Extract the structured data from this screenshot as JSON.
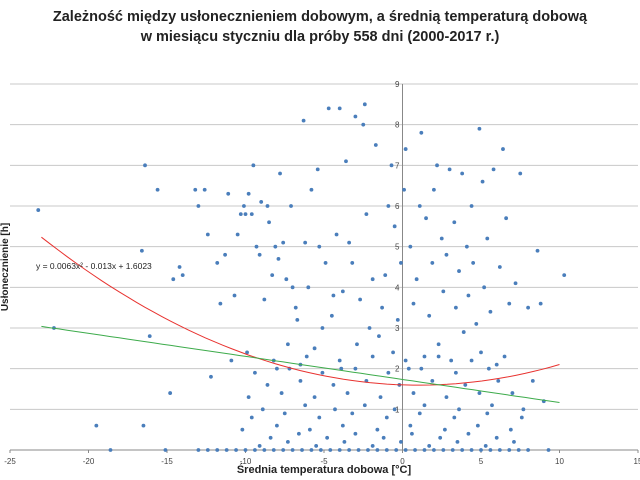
{
  "chart_data": {
    "type": "scatter",
    "title": "Zależność między usłonecznieniem dobowym, a średnią temperaturą dobową",
    "subtitle": "w miesiącu styczniu dla próby 558 dni (2000-2017 r.)",
    "xlabel": "Średnia temperatura dobowa [°C]",
    "ylabel": "Usłonecznienie [h]",
    "xlim": [
      -25,
      15
    ],
    "ylim": [
      0,
      9
    ],
    "x_ticks": [
      "-25",
      "-20",
      "-15",
      "-10",
      "-5",
      "0",
      "5",
      "10",
      "15"
    ],
    "y_ticks": [
      "1",
      "2",
      "3",
      "4",
      "5",
      "6",
      "7",
      "8",
      "9"
    ],
    "grid": "horizontal",
    "legend": "none",
    "trendline_equation": "y = 0.0063x² - 0.013x + 1.6023",
    "trendlines": [
      {
        "kind": "polynomial",
        "coefficients": [
          0.0063,
          -0.013,
          1.6023
        ],
        "x_range": [
          -23,
          10
        ],
        "color": "#e8322f"
      },
      {
        "kind": "linear",
        "slope": -0.0567,
        "intercept": 1.735,
        "x_range": [
          -23,
          10
        ],
        "color": "#3dab4b"
      }
    ],
    "point_color": "#4a7ebb",
    "points": [
      [
        -23.2,
        5.9
      ],
      [
        -22.2,
        3.0
      ],
      [
        -19.5,
        0.6
      ],
      [
        -18.6,
        0.0
      ],
      [
        -16.6,
        4.9
      ],
      [
        -16.4,
        7.0
      ],
      [
        -16.1,
        2.8
      ],
      [
        -16.5,
        0.6
      ],
      [
        -15.6,
        6.4
      ],
      [
        -15.1,
        0.0
      ],
      [
        -14.8,
        1.4
      ],
      [
        -14.6,
        4.2
      ],
      [
        -14.2,
        4.5
      ],
      [
        -14.0,
        4.3
      ],
      [
        -13.2,
        6.4
      ],
      [
        -13.0,
        6.0
      ],
      [
        -12.6,
        6.4
      ],
      [
        -12.4,
        5.3
      ],
      [
        -12.2,
        1.8
      ],
      [
        -11.8,
        4.6
      ],
      [
        -11.6,
        3.6
      ],
      [
        -11.3,
        4.8
      ],
      [
        -11.1,
        6.3
      ],
      [
        -10.9,
        2.2
      ],
      [
        -10.7,
        3.8
      ],
      [
        -10.5,
        5.3
      ],
      [
        -10.3,
        5.8
      ],
      [
        -10.1,
        6.0
      ],
      [
        -10.0,
        5.8
      ],
      [
        -9.9,
        2.4
      ],
      [
        -9.8,
        6.3
      ],
      [
        -9.6,
        5.8
      ],
      [
        -9.5,
        7.0
      ],
      [
        -9.3,
        5.0
      ],
      [
        -9.1,
        4.8
      ],
      [
        -9.0,
        6.1
      ],
      [
        -8.8,
        3.7
      ],
      [
        -8.6,
        6.0
      ],
      [
        -8.5,
        5.6
      ],
      [
        -8.3,
        4.3
      ],
      [
        -8.1,
        5.0
      ],
      [
        -8.0,
        2.0
      ],
      [
        -7.9,
        4.7
      ],
      [
        -7.8,
        6.8
      ],
      [
        -7.6,
        5.1
      ],
      [
        -7.4,
        4.2
      ],
      [
        -7.3,
        2.6
      ],
      [
        -7.1,
        6.0
      ],
      [
        -7.0,
        4.0
      ],
      [
        -6.8,
        3.5
      ],
      [
        -6.7,
        3.2
      ],
      [
        -6.5,
        2.1
      ],
      [
        -6.3,
        8.1
      ],
      [
        -6.2,
        5.1
      ],
      [
        -6.0,
        4.0
      ],
      [
        -5.8,
        6.4
      ],
      [
        -5.6,
        2.5
      ],
      [
        -5.4,
        6.9
      ],
      [
        -5.3,
        5.0
      ],
      [
        -5.1,
        3.0
      ],
      [
        -4.9,
        4.6
      ],
      [
        -4.7,
        8.4
      ],
      [
        -4.5,
        3.3
      ],
      [
        -4.4,
        3.8
      ],
      [
        -4.2,
        5.3
      ],
      [
        -4.0,
        8.4
      ],
      [
        -3.9,
        2.0
      ],
      [
        -3.8,
        3.9
      ],
      [
        -3.6,
        7.1
      ],
      [
        -3.4,
        5.1
      ],
      [
        -3.2,
        4.6
      ],
      [
        -3.0,
        8.2
      ],
      [
        -2.9,
        2.6
      ],
      [
        -2.7,
        3.7
      ],
      [
        -2.5,
        8.0
      ],
      [
        -2.4,
        8.5
      ],
      [
        -2.3,
        5.8
      ],
      [
        -2.1,
        3.0
      ],
      [
        -1.9,
        4.2
      ],
      [
        -1.7,
        7.5
      ],
      [
        -1.5,
        2.8
      ],
      [
        -1.3,
        3.5
      ],
      [
        -1.1,
        4.3
      ],
      [
        -0.9,
        6.0
      ],
      [
        -0.7,
        7.0
      ],
      [
        -0.6,
        2.4
      ],
      [
        -0.5,
        5.5
      ],
      [
        -0.3,
        3.2
      ],
      [
        -0.1,
        4.6
      ],
      [
        0.1,
        6.4
      ],
      [
        0.2,
        7.4
      ],
      [
        0.4,
        2.0
      ],
      [
        0.5,
        5.0
      ],
      [
        0.7,
        3.6
      ],
      [
        0.9,
        4.2
      ],
      [
        1.1,
        6.0
      ],
      [
        1.2,
        7.8
      ],
      [
        1.4,
        2.3
      ],
      [
        1.5,
        5.7
      ],
      [
        1.7,
        3.3
      ],
      [
        1.9,
        4.6
      ],
      [
        2.0,
        6.4
      ],
      [
        2.2,
        7.0
      ],
      [
        2.3,
        2.6
      ],
      [
        2.5,
        5.2
      ],
      [
        2.6,
        3.9
      ],
      [
        2.8,
        4.8
      ],
      [
        3.0,
        6.9
      ],
      [
        3.1,
        2.2
      ],
      [
        3.3,
        5.6
      ],
      [
        3.4,
        3.5
      ],
      [
        3.6,
        4.4
      ],
      [
        3.8,
        6.8
      ],
      [
        3.9,
        2.9
      ],
      [
        4.1,
        5.0
      ],
      [
        4.2,
        3.8
      ],
      [
        4.4,
        6.0
      ],
      [
        4.5,
        4.6
      ],
      [
        4.7,
        3.1
      ],
      [
        4.9,
        7.9
      ],
      [
        5.0,
        2.4
      ],
      [
        5.1,
        6.6
      ],
      [
        5.2,
        4.0
      ],
      [
        5.4,
        5.2
      ],
      [
        5.6,
        3.4
      ],
      [
        5.8,
        6.9
      ],
      [
        6.0,
        2.1
      ],
      [
        6.2,
        4.5
      ],
      [
        6.4,
        7.4
      ],
      [
        6.6,
        5.7
      ],
      [
        6.8,
        3.6
      ],
      [
        7.0,
        1.4
      ],
      [
        7.2,
        4.1
      ],
      [
        7.5,
        6.8
      ],
      [
        7.7,
        1.0
      ],
      [
        8.0,
        3.5
      ],
      [
        8.3,
        1.7
      ],
      [
        8.6,
        4.9
      ],
      [
        8.8,
        3.6
      ],
      [
        9.0,
        1.2
      ],
      [
        9.3,
        0.0
      ],
      [
        10.3,
        4.3
      ],
      [
        -13.0,
        0.0
      ],
      [
        -12.4,
        0.0
      ],
      [
        -11.8,
        0.0
      ],
      [
        -11.2,
        0.0
      ],
      [
        -10.6,
        0.0
      ],
      [
        -10.0,
        0.0
      ],
      [
        -9.4,
        0.0
      ],
      [
        -8.8,
        0.0
      ],
      [
        -8.2,
        0.0
      ],
      [
        -7.6,
        0.0
      ],
      [
        -7.0,
        0.0
      ],
      [
        -6.4,
        0.0
      ],
      [
        -5.8,
        0.0
      ],
      [
        -5.2,
        0.0
      ],
      [
        -4.6,
        0.0
      ],
      [
        -4.0,
        0.0
      ],
      [
        -3.4,
        0.0
      ],
      [
        -2.8,
        0.0
      ],
      [
        -2.2,
        0.0
      ],
      [
        -1.6,
        0.0
      ],
      [
        -1.0,
        0.0
      ],
      [
        -0.4,
        0.0
      ],
      [
        0.2,
        0.0
      ],
      [
        0.8,
        0.0
      ],
      [
        1.4,
        0.0
      ],
      [
        2.0,
        0.0
      ],
      [
        2.6,
        0.0
      ],
      [
        3.2,
        0.0
      ],
      [
        3.8,
        0.0
      ],
      [
        4.4,
        0.0
      ],
      [
        5.0,
        0.0
      ],
      [
        5.6,
        0.0
      ],
      [
        6.2,
        0.0
      ],
      [
        6.8,
        0.0
      ],
      [
        7.4,
        0.0
      ],
      [
        8.0,
        0.0
      ],
      [
        -9.1,
        0.1
      ],
      [
        -7.3,
        0.2
      ],
      [
        -5.5,
        0.1
      ],
      [
        -3.7,
        0.2
      ],
      [
        -1.9,
        0.1
      ],
      [
        -0.1,
        0.2
      ],
      [
        1.7,
        0.1
      ],
      [
        3.5,
        0.2
      ],
      [
        5.3,
        0.1
      ],
      [
        7.1,
        0.2
      ],
      [
        -8.4,
        0.3
      ],
      [
        -6.6,
        0.4
      ],
      [
        -4.8,
        0.3
      ],
      [
        -3.0,
        0.4
      ],
      [
        -1.2,
        0.3
      ],
      [
        0.6,
        0.4
      ],
      [
        2.4,
        0.3
      ],
      [
        4.2,
        0.4
      ],
      [
        6.0,
        0.3
      ],
      [
        -10.2,
        0.5
      ],
      [
        -8.0,
        0.6
      ],
      [
        -5.9,
        0.5
      ],
      [
        -3.8,
        0.6
      ],
      [
        -1.6,
        0.5
      ],
      [
        0.5,
        0.6
      ],
      [
        2.7,
        0.5
      ],
      [
        4.8,
        0.6
      ],
      [
        6.9,
        0.5
      ],
      [
        -9.6,
        0.8
      ],
      [
        -7.5,
        0.9
      ],
      [
        -5.3,
        0.8
      ],
      [
        -3.2,
        0.9
      ],
      [
        -1.0,
        0.8
      ],
      [
        1.1,
        0.9
      ],
      [
        3.3,
        0.8
      ],
      [
        5.4,
        0.9
      ],
      [
        7.6,
        0.8
      ],
      [
        -8.9,
        1.0
      ],
      [
        -6.2,
        1.1
      ],
      [
        -4.3,
        1.0
      ],
      [
        -2.4,
        1.1
      ],
      [
        -0.5,
        1.0
      ],
      [
        1.4,
        1.1
      ],
      [
        3.6,
        1.0
      ],
      [
        5.7,
        1.1
      ],
      [
        -9.8,
        1.3
      ],
      [
        -7.7,
        1.4
      ],
      [
        -5.6,
        1.3
      ],
      [
        -3.5,
        1.4
      ],
      [
        -1.4,
        1.3
      ],
      [
        0.7,
        1.4
      ],
      [
        2.8,
        1.3
      ],
      [
        4.9,
        1.4
      ],
      [
        -8.6,
        1.6
      ],
      [
        -6.5,
        1.7
      ],
      [
        -4.4,
        1.6
      ],
      [
        -2.3,
        1.7
      ],
      [
        -0.2,
        1.6
      ],
      [
        1.9,
        1.7
      ],
      [
        4.0,
        1.6
      ],
      [
        6.1,
        1.7
      ],
      [
        -9.4,
        1.9
      ],
      [
        -7.2,
        2.0
      ],
      [
        -5.1,
        1.9
      ],
      [
        -3.0,
        2.0
      ],
      [
        -0.9,
        1.9
      ],
      [
        1.2,
        2.0
      ],
      [
        3.4,
        1.9
      ],
      [
        5.5,
        2.0
      ],
      [
        -8.2,
        2.2
      ],
      [
        -6.1,
        2.3
      ],
      [
        -4.0,
        2.2
      ],
      [
        -1.9,
        2.3
      ],
      [
        0.2,
        2.2
      ],
      [
        2.3,
        2.3
      ],
      [
        4.4,
        2.2
      ],
      [
        6.5,
        2.3
      ]
    ]
  }
}
